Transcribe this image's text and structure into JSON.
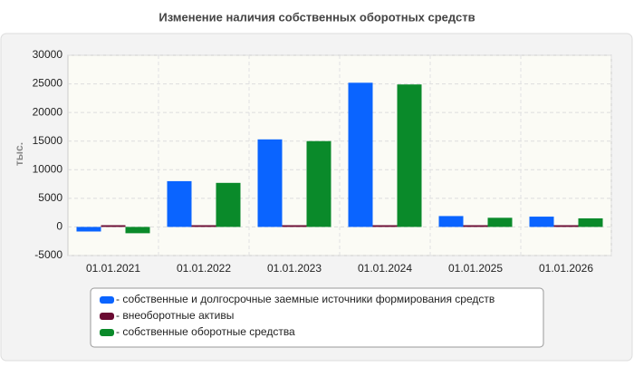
{
  "chart_data": {
    "type": "bar",
    "title": "Изменение наличия собственных оборотных средств",
    "y_label": "тыс.",
    "categories": [
      "01.01.2021",
      "01.01.2022",
      "01.01.2023",
      "01.01.2024",
      "01.01.2025",
      "01.01.2026"
    ],
    "series": [
      {
        "name": "- собственные и долгосрочные заемные источники формирования средств",
        "color": "#0a64ff",
        "values": [
          -800,
          8000,
          15300,
          25200,
          1900,
          1800
        ]
      },
      {
        "name": "- внеоборотные активы",
        "color": "#6a0a32",
        "values": [
          300,
          300,
          300,
          300,
          300,
          300
        ]
      },
      {
        "name": "- собственные оборотные средства",
        "color": "#0a8a2a",
        "values": [
          -1100,
          7700,
          15000,
          24900,
          1600,
          1500
        ]
      }
    ],
    "ylim": [
      -5000,
      30000
    ],
    "yticks": [
      -5000,
      0,
      5000,
      10000,
      15000,
      20000,
      25000,
      30000
    ],
    "grid": true
  }
}
